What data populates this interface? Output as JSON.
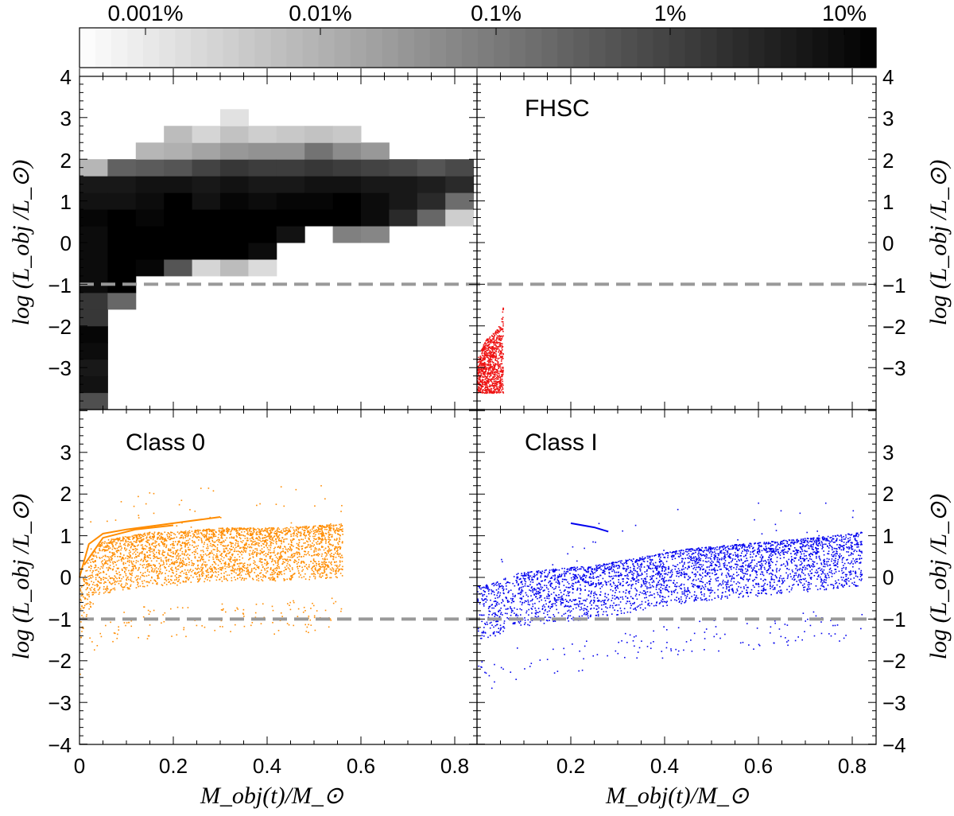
{
  "colorbar": {
    "tick_labels": [
      "0.001%",
      "0.01%",
      "0.1%",
      "1%",
      "10%"
    ],
    "log_range": [
      -5.1,
      -0.9
    ]
  },
  "colors": {
    "dashed_line": "#999999",
    "fhsc": "#ee1111",
    "class0": "#ff8c00",
    "class1": "#0000ee"
  },
  "axes": {
    "xlabel": "M_obj(t)/M_⊙",
    "ylabel": "log (L_obj /L_⊙)",
    "x_tick_labels_left": [
      "0",
      "0.2",
      "0.4",
      "0.6",
      "0.8"
    ],
    "x_tick_labels_right": [
      "0.2",
      "0.4",
      "0.6",
      "0.8"
    ],
    "y_tick_labels_top": [
      "4",
      "3",
      "2",
      "1",
      "0",
      "−1",
      "−2",
      "−3"
    ],
    "y_tick_labels_bottom": [
      "3",
      "2",
      "1",
      "0",
      "−1",
      "−2",
      "−3",
      "−4"
    ]
  },
  "panels": {
    "fhsc_label": "FHSC",
    "class0_label": "Class 0",
    "class1_label": "Class I"
  },
  "chart_data": [
    {
      "panel": "top-left",
      "type": "heatmap",
      "xlim": [
        0,
        0.85
      ],
      "ylim": [
        -4,
        4
      ],
      "x_bin_width": 0.06,
      "y_bin_height": 0.4,
      "y_threshold": -1,
      "cells": [
        [
          0,
          -4.0,
          -2.2
        ],
        [
          0,
          -3.6,
          -1.2
        ],
        [
          0,
          -3.2,
          -1.3
        ],
        [
          0,
          -2.8,
          -1.1
        ],
        [
          0,
          -2.4,
          -1.0
        ],
        [
          0,
          -2.0,
          -1.8
        ],
        [
          0,
          -1.6,
          -1.8
        ],
        [
          0,
          -1.2,
          -1.1
        ],
        [
          0,
          -0.8,
          -1.1
        ],
        [
          0,
          -0.4,
          -1.1
        ],
        [
          0,
          0.0,
          -1.1
        ],
        [
          0,
          0.4,
          -1.0
        ],
        [
          0,
          0.8,
          -1.2
        ],
        [
          0,
          1.2,
          -1.3
        ],
        [
          0,
          1.6,
          -3.9
        ],
        [
          1,
          -1.6,
          -2.6
        ],
        [
          1,
          -1.2,
          0.9
        ],
        [
          1,
          -0.8,
          -0.5
        ],
        [
          1,
          -0.4,
          -0.7
        ],
        [
          1,
          0.0,
          -0.8
        ],
        [
          1,
          0.4,
          -0.8
        ],
        [
          1,
          0.8,
          -1.2
        ],
        [
          1,
          1.2,
          -1.3
        ],
        [
          1,
          1.6,
          -2.5
        ],
        [
          2,
          -0.8,
          -1.0
        ],
        [
          2,
          -0.4,
          -0.5
        ],
        [
          2,
          0.0,
          -0.7
        ],
        [
          2,
          0.4,
          -1.0
        ],
        [
          2,
          0.8,
          -1.1
        ],
        [
          2,
          1.2,
          -1.2
        ],
        [
          2,
          1.6,
          -2.4
        ],
        [
          2,
          2.0,
          -3.9
        ],
        [
          3,
          -0.8,
          -2.3
        ],
        [
          3,
          -0.4,
          -0.6
        ],
        [
          3,
          0.0,
          -0.3
        ],
        [
          3,
          0.4,
          -0.6
        ],
        [
          3,
          0.8,
          -0.9
        ],
        [
          3,
          1.2,
          -1.2
        ],
        [
          3,
          1.6,
          -2.3
        ],
        [
          3,
          2.0,
          -3.8
        ],
        [
          3,
          2.4,
          -4.0
        ],
        [
          4,
          -0.8,
          -4.4
        ],
        [
          4,
          -0.4,
          -0.7
        ],
        [
          4,
          0.0,
          -0.6
        ],
        [
          4,
          0.4,
          -0.8
        ],
        [
          4,
          0.8,
          -1.2
        ],
        [
          4,
          1.2,
          -1.3
        ],
        [
          4,
          1.6,
          -2.0
        ],
        [
          4,
          2.0,
          -3.6
        ],
        [
          4,
          2.4,
          -4.4
        ],
        [
          5,
          -0.8,
          -4.0
        ],
        [
          5,
          -0.4,
          -0.9
        ],
        [
          5,
          0.0,
          -0.9
        ],
        [
          5,
          0.4,
          -0.7
        ],
        [
          5,
          0.8,
          -1.0
        ],
        [
          5,
          1.2,
          -1.2
        ],
        [
          5,
          1.6,
          -1.8
        ],
        [
          5,
          2.0,
          -3.4
        ],
        [
          5,
          2.4,
          -4.1
        ],
        [
          5,
          2.8,
          -4.6
        ],
        [
          6,
          -0.8,
          -4.5
        ],
        [
          6,
          -0.4,
          -1.1
        ],
        [
          6,
          0.0,
          -0.7
        ],
        [
          6,
          0.4,
          -0.7
        ],
        [
          6,
          0.8,
          -1.1
        ],
        [
          6,
          1.2,
          -1.3
        ],
        [
          6,
          1.6,
          -1.9
        ],
        [
          6,
          2.0,
          -3.3
        ],
        [
          6,
          2.4,
          -4.3
        ],
        [
          7,
          0.0,
          -1.2
        ],
        [
          7,
          0.4,
          -0.8
        ],
        [
          7,
          0.8,
          -1.0
        ],
        [
          7,
          1.2,
          -1.3
        ],
        [
          7,
          1.6,
          -1.9
        ],
        [
          7,
          2.0,
          -3.3
        ],
        [
          7,
          2.4,
          -4.2
        ],
        [
          8,
          0.4,
          -0.8
        ],
        [
          8,
          0.8,
          -1.0
        ],
        [
          8,
          1.2,
          -1.2
        ],
        [
          8,
          1.6,
          -1.8
        ],
        [
          8,
          2.0,
          -2.8
        ],
        [
          8,
          2.4,
          -4.1
        ],
        [
          9,
          0.0,
          -3.0
        ],
        [
          9,
          0.4,
          -0.9
        ],
        [
          9,
          0.8,
          -0.8
        ],
        [
          9,
          1.2,
          -1.2
        ],
        [
          9,
          1.6,
          -1.9
        ],
        [
          9,
          2.0,
          -3.2
        ],
        [
          9,
          2.4,
          -4.2
        ],
        [
          10,
          0.0,
          -3.1
        ],
        [
          10,
          0.4,
          -1.1
        ],
        [
          10,
          0.8,
          -1.1
        ],
        [
          10,
          1.2,
          -1.3
        ],
        [
          10,
          1.6,
          -2.0
        ],
        [
          10,
          2.0,
          -3.4
        ],
        [
          11,
          0.4,
          -1.6
        ],
        [
          11,
          0.8,
          -1.3
        ],
        [
          11,
          1.2,
          -1.3
        ],
        [
          11,
          1.6,
          -2.1
        ],
        [
          12,
          0.4,
          -2.6
        ],
        [
          12,
          0.8,
          -1.6
        ],
        [
          12,
          1.2,
          -1.4
        ],
        [
          12,
          1.6,
          -2.3
        ],
        [
          13,
          0.4,
          -4.3
        ],
        [
          13,
          0.8,
          -2.7
        ],
        [
          13,
          1.2,
          -1.6
        ],
        [
          13,
          1.6,
          -2.1
        ]
      ]
    },
    {
      "panel": "top-right",
      "type": "scatter",
      "label": "FHSC",
      "xlim": [
        0,
        0.85
      ],
      "ylim": [
        -4,
        4
      ],
      "y_threshold": -1,
      "x_range": [
        0.0,
        0.055
      ],
      "y_range": [
        -3.6,
        -1.6
      ],
      "envelope": [
        [
          0.0,
          -3.0
        ],
        [
          0.01,
          -2.7
        ],
        [
          0.02,
          -2.5
        ],
        [
          0.04,
          -2.3
        ],
        [
          0.05,
          -2.1
        ],
        [
          0.055,
          -1.7
        ]
      ]
    },
    {
      "panel": "bottom-left",
      "type": "scatter",
      "label": "Class 0",
      "xlim": [
        0,
        0.85
      ],
      "ylim": [
        -4,
        4
      ],
      "y_threshold": -1,
      "envelope": [
        [
          0.0,
          -0.3
        ],
        [
          0.02,
          0.5
        ],
        [
          0.05,
          0.9
        ],
        [
          0.1,
          1.0
        ],
        [
          0.15,
          1.1
        ],
        [
          0.2,
          1.1
        ],
        [
          0.3,
          1.2
        ],
        [
          0.4,
          1.2
        ],
        [
          0.5,
          1.25
        ],
        [
          0.56,
          1.3
        ]
      ],
      "spread": 0.8,
      "tracks": [
        [
          [
            0.0,
            0.0
          ],
          [
            0.02,
            0.8
          ],
          [
            0.05,
            1.05
          ],
          [
            0.1,
            1.15
          ],
          [
            0.2,
            1.3
          ],
          [
            0.3,
            1.45
          ]
        ],
        [
          [
            0.01,
            0.3
          ],
          [
            0.05,
            0.95
          ],
          [
            0.12,
            1.15
          ],
          [
            0.2,
            1.25
          ]
        ]
      ]
    },
    {
      "panel": "bottom-right",
      "type": "scatter",
      "label": "Class I",
      "xlim": [
        0,
        0.85
      ],
      "ylim": [
        -4,
        4
      ],
      "y_threshold": -1,
      "envelope": [
        [
          0.0,
          -0.2
        ],
        [
          0.04,
          -0.1
        ],
        [
          0.08,
          0.1
        ],
        [
          0.15,
          0.2
        ],
        [
          0.25,
          0.3
        ],
        [
          0.35,
          0.5
        ],
        [
          0.45,
          0.7
        ],
        [
          0.55,
          0.8
        ],
        [
          0.65,
          0.9
        ],
        [
          0.75,
          1.0
        ],
        [
          0.82,
          1.1
        ]
      ],
      "spread": 0.8,
      "tracks": [
        [
          [
            0.2,
            1.3
          ],
          [
            0.25,
            1.2
          ],
          [
            0.28,
            1.1
          ]
        ]
      ]
    }
  ]
}
